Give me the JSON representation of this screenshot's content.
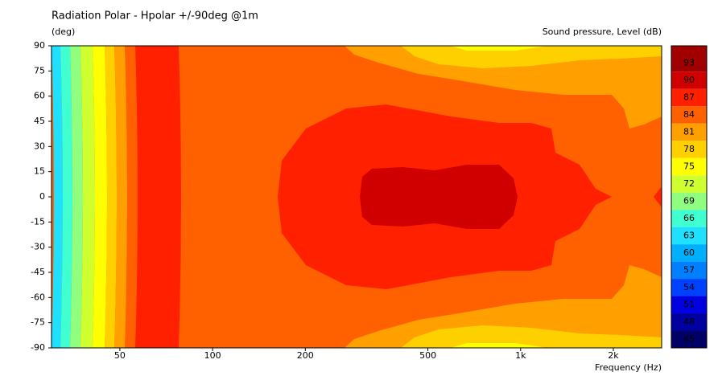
{
  "chart_data": {
    "type": "contour",
    "title": "Radiation Polar - Hpolar +/-90deg @1m",
    "ylabel": "(deg)",
    "zlabel": "Sound pressure, Level  (dB)",
    "xlabel": "Frequency  (Hz)",
    "xscale": "log",
    "xlim": [
      30,
      2870
    ],
    "xticks": [
      50,
      100,
      200,
      500,
      {
        "value": 1000,
        "label": "1k"
      },
      {
        "value": 2000,
        "label": "2k"
      }
    ],
    "ylim": [
      -90,
      90
    ],
    "yticks": [
      90,
      75,
      60,
      45,
      30,
      15,
      0,
      -15,
      -30,
      -45,
      -60,
      -75,
      -90
    ],
    "zlim": [
      43.5,
      96
    ],
    "zticks": [
      45,
      48,
      51,
      54,
      57,
      60,
      63,
      66,
      69,
      72,
      75,
      78,
      81,
      84,
      87,
      90,
      93
    ],
    "level_colors": [
      "#000066",
      "#0000a0",
      "#0000e0",
      "#0040ff",
      "#0080ff",
      "#00b0ff",
      "#20e0ff",
      "#40ffd0",
      "#90ff80",
      "#d0ff30",
      "#ffff00",
      "#ffd000",
      "#ffa000",
      "#ff6000",
      "#ff2000",
      "#d00000",
      "#a00000"
    ]
  }
}
